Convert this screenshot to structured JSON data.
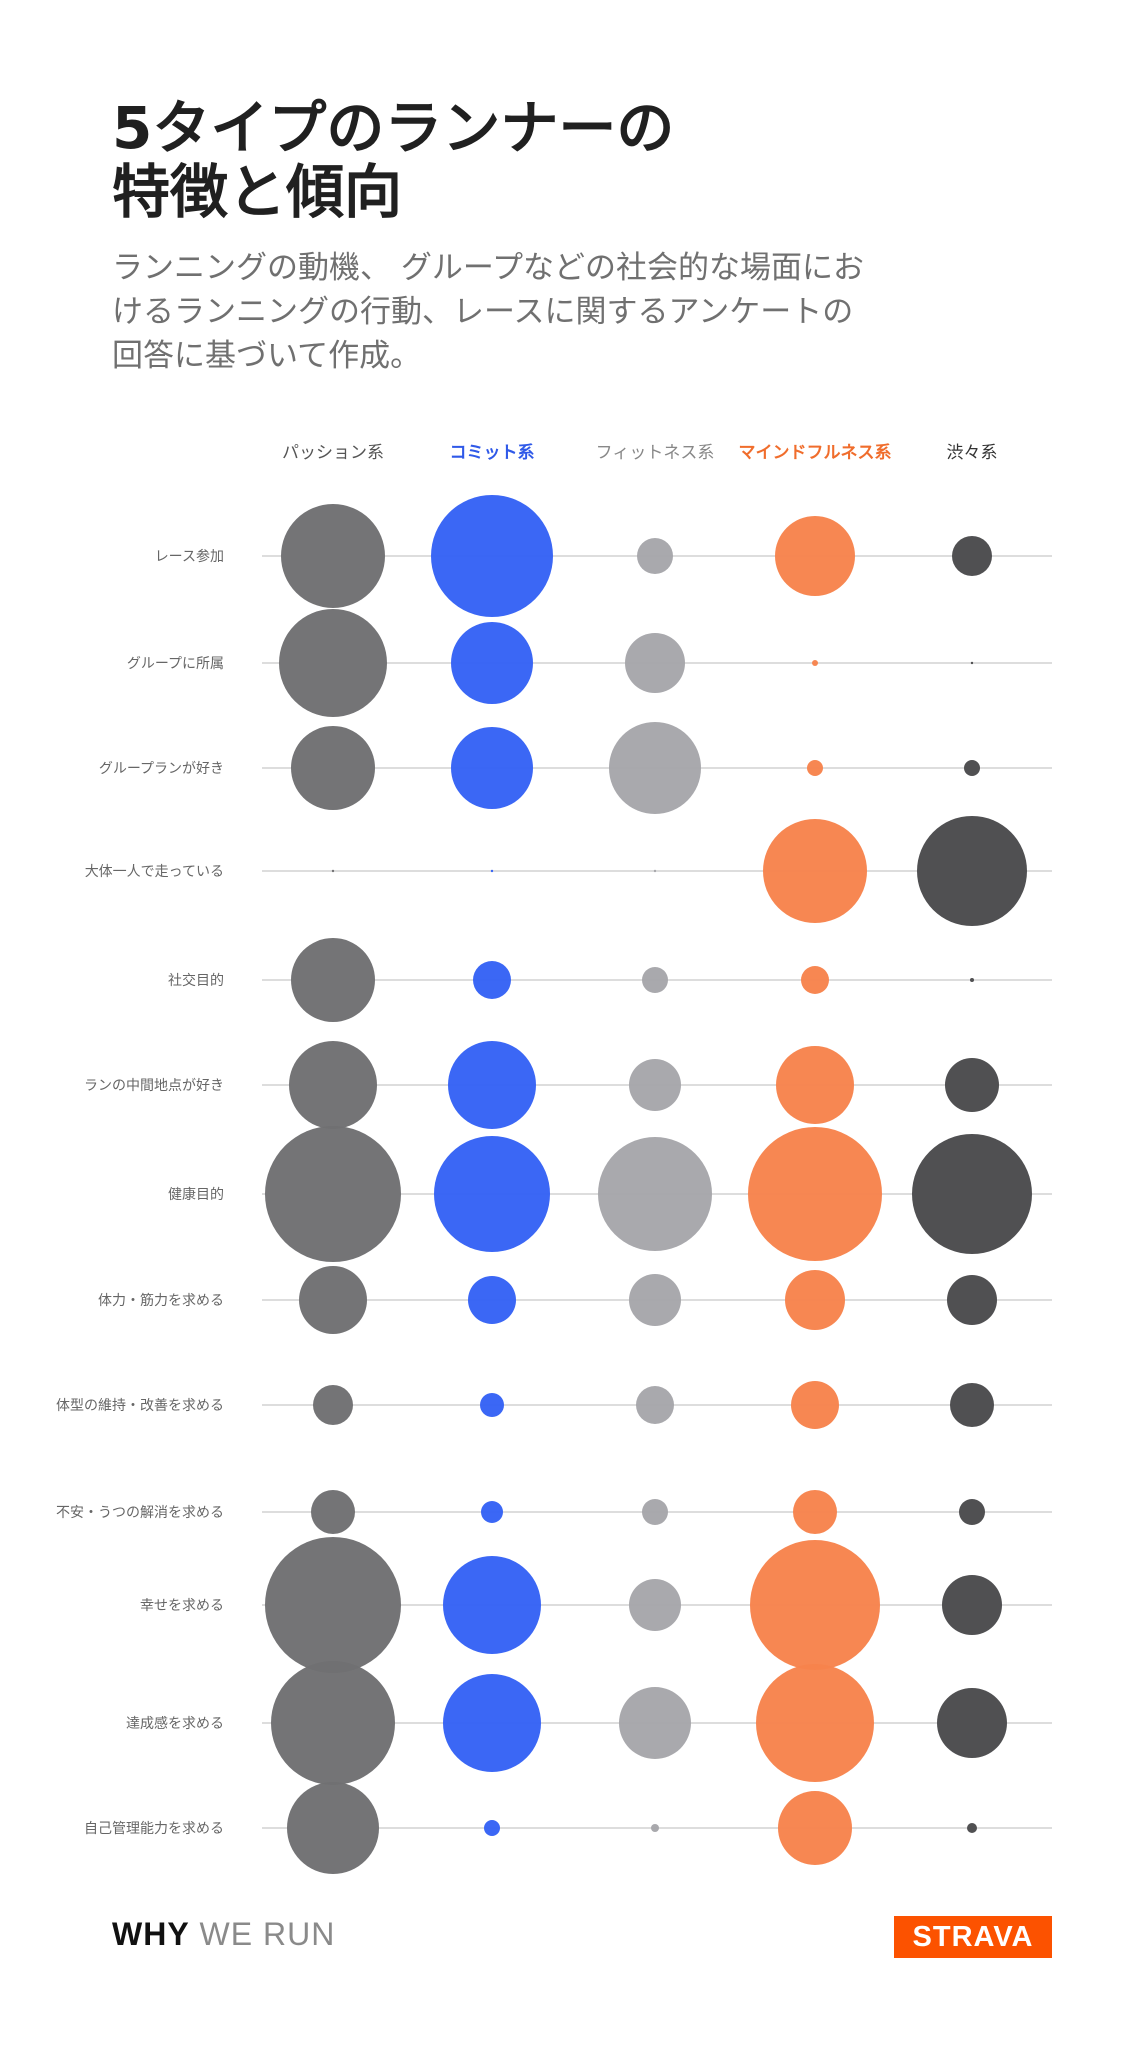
{
  "header": {
    "title_lines": [
      "5タイプのランナーの",
      "特徴と傾向"
    ],
    "subtitle_lines": [
      "ランニングの動機、 グループなどの社会的な場面にお",
      "けるランニングの行動、レースに関するアンケートの",
      "回答に基づいて作成。"
    ]
  },
  "chart_data": {
    "type": "bubble",
    "categories": [
      "パッション系",
      "コミット系",
      "フィットネス系",
      "マインドフルネス系",
      "渋々系"
    ],
    "category_colors": [
      "#6f6f72",
      "#3562f5",
      "#a6a6aa",
      "#f7834c",
      "#4a4a4c"
    ],
    "category_label_colors": [
      "#555555",
      "#2f59e8",
      "#888888",
      "#f06d2c",
      "#333333"
    ],
    "rows": [
      "レース参加",
      "グループに所属",
      "グループランが好き",
      "大体一人で走っている",
      "社交目的",
      "ランの中間地点が好き",
      "健康目的",
      "体力・筋力を求める",
      "体型の維持・改善を求める",
      "不安・うつの解消を求める",
      "幸せを求める",
      "達成感を求める",
      "自己管理能力を求める"
    ],
    "series": [
      {
        "name": "パッション系",
        "values": [
          52,
          54,
          42,
          1,
          42,
          44,
          68,
          34,
          20,
          22,
          68,
          62,
          46
        ]
      },
      {
        "name": "コミット系",
        "values": [
          61,
          41,
          41,
          1,
          19,
          44,
          58,
          24,
          12,
          11,
          49,
          49,
          8
        ]
      },
      {
        "name": "フィットネス系",
        "values": [
          18,
          30,
          46,
          1,
          13,
          26,
          57,
          26,
          19,
          13,
          26,
          36,
          4
        ]
      },
      {
        "name": "マインドフルネス系",
        "values": [
          40,
          3,
          8,
          52,
          14,
          39,
          67,
          30,
          24,
          22,
          65,
          59,
          37
        ]
      },
      {
        "name": "渋々系",
        "values": [
          20,
          1,
          8,
          55,
          2,
          27,
          60,
          25,
          22,
          13,
          30,
          35,
          5
        ]
      }
    ],
    "value_note": "values are bubble diameters in relative units (not printed in original)",
    "grid": "horizontal row lines"
  },
  "footer": {
    "brand_bold": "WHY",
    "brand_light": " WE RUN",
    "logo_text": "STRAVA",
    "logo_color": "#fc5200"
  }
}
